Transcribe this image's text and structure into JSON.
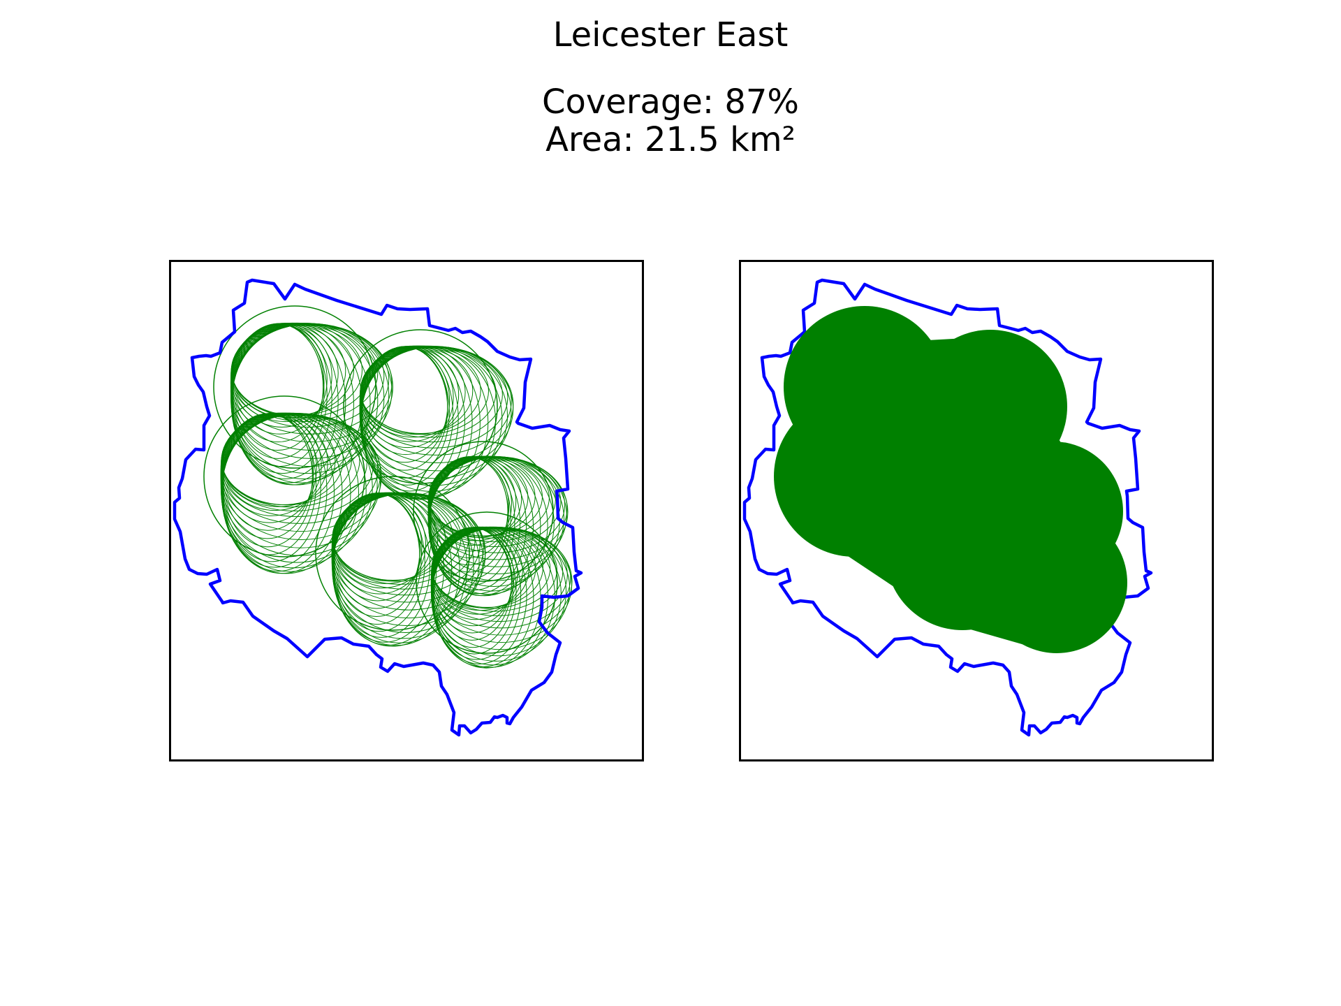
{
  "figure": {
    "title": "Leicester East",
    "coverage_text": "Coverage: 87%",
    "area_text": "Area: 21.5 km²"
  },
  "map": {
    "constituency": "Leicester East",
    "coverage_percent": 87,
    "area_km2": 21.5,
    "boundary_color": "#0000ff",
    "coverage_color": "#008000",
    "panels": [
      {
        "id": "left",
        "style": "overlapping circle outlines (hatched)"
      },
      {
        "id": "right",
        "style": "solid filled union"
      }
    ]
  },
  "colors": {
    "boundary": "#0000ff",
    "coverage": "#008000",
    "frame": "#000000",
    "background": "#ffffff"
  }
}
